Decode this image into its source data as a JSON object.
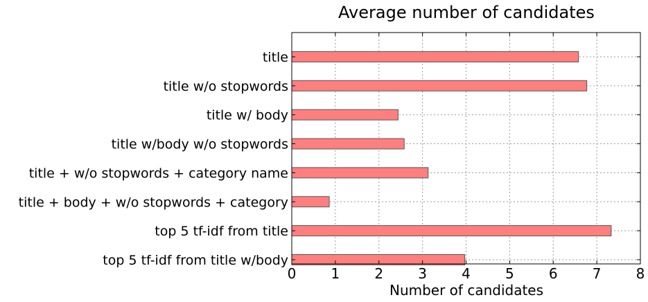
{
  "chart_data": {
    "type": "bar",
    "orientation": "horizontal",
    "title": "Average number of candidates",
    "xlabel": "Number of candidates",
    "ylabel": "",
    "xlim": [
      0,
      8
    ],
    "xticks": [
      "0",
      "1",
      "2",
      "3",
      "4",
      "5",
      "6",
      "7",
      "8"
    ],
    "grid": true,
    "bar_color": "#ff7f7f",
    "categories": [
      "title",
      "title w/o stopwords",
      "title w/ body",
      "title w/body w/o stopwords",
      "title + w/o stopwords + category name",
      "title + body + w/o stopwords + category",
      "top 5 tf-idf from title",
      "top 5 tf-idf from title w/body"
    ],
    "values": [
      6.58,
      6.77,
      2.44,
      2.58,
      3.13,
      0.86,
      7.33,
      3.97
    ]
  }
}
